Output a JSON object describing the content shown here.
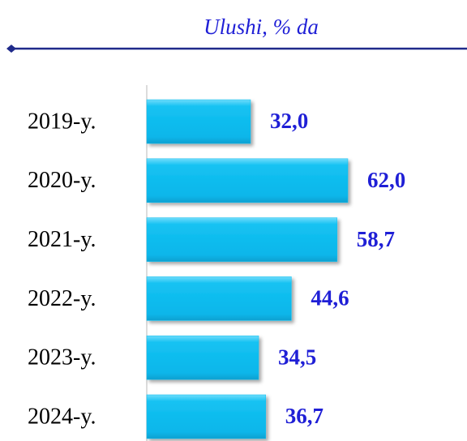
{
  "chart_data": {
    "type": "bar",
    "orientation": "horizontal",
    "title": "Ulushi, % da",
    "categories": [
      "2019-y.",
      "2020-y.",
      "2021-y.",
      "2022-y.",
      "2023-y.",
      "2024-y."
    ],
    "values": [
      32.0,
      62.0,
      58.7,
      44.6,
      34.5,
      36.7
    ],
    "value_labels": [
      "32,0",
      "62,0",
      "58,7",
      "44,6",
      "34,5",
      "36,7"
    ],
    "color": "#0bbef0",
    "label_color": "#1f1fd6",
    "xlim": [
      0,
      100
    ]
  }
}
